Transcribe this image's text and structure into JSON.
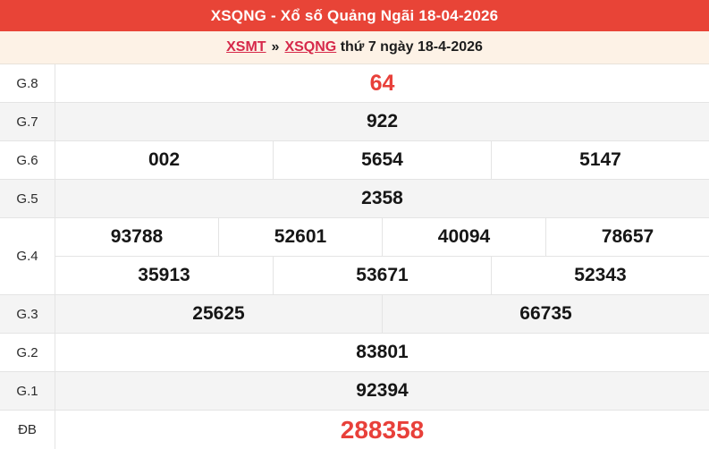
{
  "header": {
    "title": "XSQNG - Xổ số Quảng Ngãi 18-04-2026"
  },
  "breadcrumb": {
    "links": [
      {
        "label": "XSMT"
      },
      {
        "label": "XSQNG"
      }
    ],
    "separator": "»",
    "suffix": " thứ 7 ngày 18-4-2026"
  },
  "results": {
    "rows": [
      {
        "key": "g8",
        "label": "G.8",
        "shaded": false,
        "highlight": "red-large",
        "subrows": [
          [
            "64"
          ]
        ]
      },
      {
        "key": "g7",
        "label": "G.7",
        "shaded": true,
        "highlight": null,
        "subrows": [
          [
            "922"
          ]
        ]
      },
      {
        "key": "g6",
        "label": "G.6",
        "shaded": false,
        "highlight": null,
        "subrows": [
          [
            "002",
            "5654",
            "5147"
          ]
        ]
      },
      {
        "key": "g5",
        "label": "G.5",
        "shaded": true,
        "highlight": null,
        "subrows": [
          [
            "2358"
          ]
        ]
      },
      {
        "key": "g4",
        "label": "G.4",
        "shaded": false,
        "highlight": null,
        "subrows": [
          [
            "93788",
            "52601",
            "40094",
            "78657"
          ],
          [
            "35913",
            "53671",
            "52343"
          ]
        ]
      },
      {
        "key": "g3",
        "label": "G.3",
        "shaded": true,
        "highlight": null,
        "subrows": [
          [
            "25625",
            "66735"
          ]
        ]
      },
      {
        "key": "g2",
        "label": "G.2",
        "shaded": false,
        "highlight": null,
        "subrows": [
          [
            "83801"
          ]
        ]
      },
      {
        "key": "g1",
        "label": "G.1",
        "shaded": true,
        "highlight": null,
        "subrows": [
          [
            "92394"
          ]
        ]
      },
      {
        "key": "db",
        "label": "ĐB",
        "shaded": false,
        "highlight": "red-xlarge",
        "subrows": [
          [
            "288358"
          ]
        ]
      }
    ]
  },
  "colors": {
    "header_bg": "#e84437",
    "header_text": "#ffffff",
    "breadcrumb_bg": "#fdf2e6",
    "link_red": "#d6294a",
    "value_red": "#e8403a",
    "value_black": "#161616",
    "row_shade": "#f4f4f4",
    "border": "#e4e4e4"
  }
}
